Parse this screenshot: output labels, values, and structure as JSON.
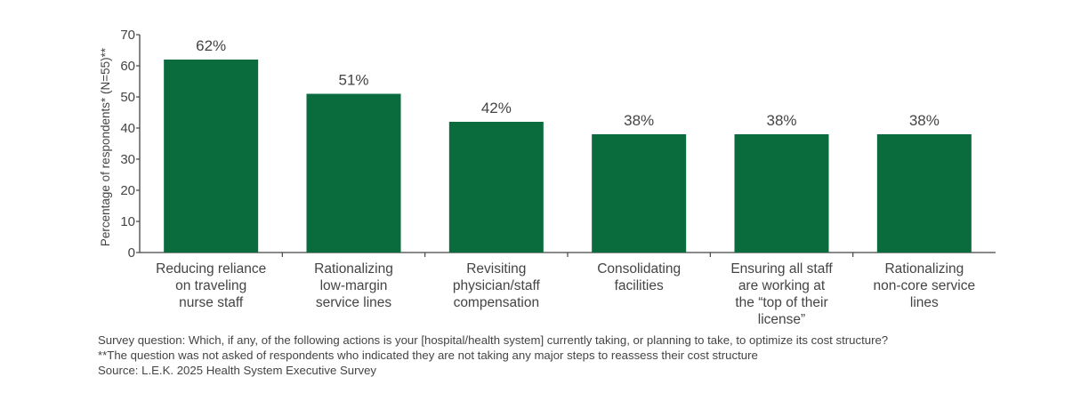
{
  "chart_data": {
    "type": "bar",
    "ylabel": "Percentage of respondents* (N=55)**",
    "ylim": [
      0,
      70
    ],
    "yticks": [
      0,
      10,
      20,
      30,
      40,
      50,
      60,
      70
    ],
    "grid": false,
    "categories": [
      [
        "Reducing reliance",
        "on traveling",
        "nurse staff"
      ],
      [
        "Rationalizing",
        "low-margin",
        "service lines"
      ],
      [
        "Revisiting",
        "physician/staff",
        "compensation"
      ],
      [
        "Consolidating",
        "facilities"
      ],
      [
        "Ensuring all staff",
        "are working at",
        "the “top of their",
        "license”"
      ],
      [
        "Rationalizing",
        "non-core service",
        "lines"
      ]
    ],
    "values": [
      62,
      51,
      42,
      38,
      38,
      38
    ],
    "data_labels": [
      "62%",
      "51%",
      "42%",
      "38%",
      "38%",
      "38%"
    ],
    "bar_color": "#0a6b3d"
  },
  "notes": [
    "Survey question: Which, if any, of the following actions is your [hospital/health system] currently taking, or planning to take, to optimize its cost structure?",
    "**The question was not asked of respondents who indicated they are not taking any major steps to reassess their cost structure",
    "Source: L.E.K. 2025 Health System Executive Survey"
  ]
}
